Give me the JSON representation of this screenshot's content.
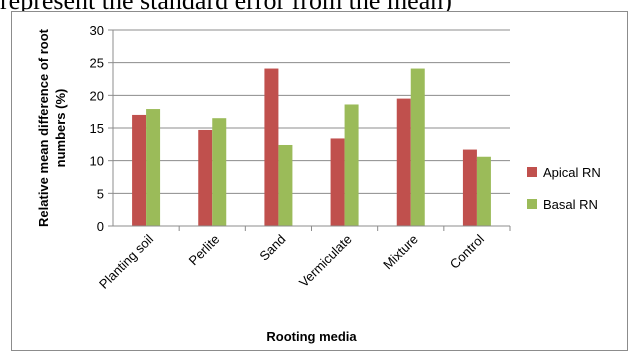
{
  "caption_fragment": "represent the standard error from the mean)",
  "chart_data": {
    "type": "bar",
    "title": "",
    "xlabel": "Rooting media",
    "ylabel": "Relative mean difference of root numbers (%)",
    "ylim": [
      0,
      30
    ],
    "yticks": [
      0,
      5,
      10,
      15,
      20,
      25,
      30
    ],
    "grid": true,
    "legend_position": "right",
    "categories": [
      "Planting soil",
      "Perlite",
      "Sand",
      "Vermiculate",
      "Mixture",
      "Control"
    ],
    "series": [
      {
        "name": "Apical RN",
        "color": "#c0504d",
        "values": [
          17.0,
          14.7,
          24.1,
          13.4,
          19.5,
          11.7
        ]
      },
      {
        "name": "Basal RN",
        "color": "#9bbb59",
        "values": [
          17.9,
          16.5,
          12.4,
          18.6,
          24.1,
          10.6
        ]
      }
    ]
  }
}
